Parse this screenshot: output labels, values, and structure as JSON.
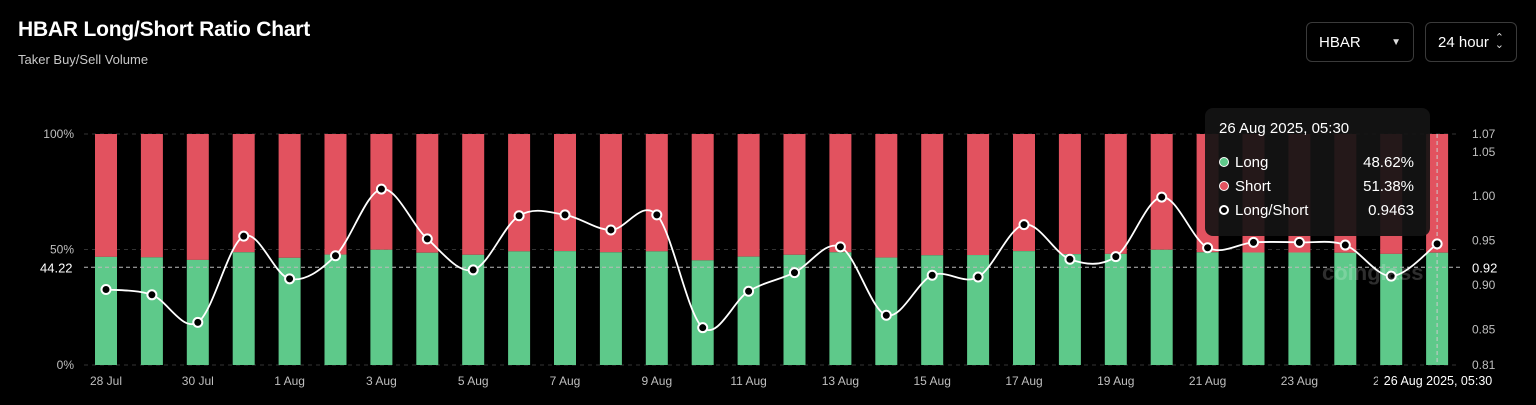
{
  "header": {
    "title": "HBAR Long/Short Ratio Chart",
    "subtitle": "Taker Buy/Sell Volume"
  },
  "controls": {
    "coin": "HBAR",
    "interval": "24 hour"
  },
  "colors": {
    "long": "#5ec98a",
    "short": "#e2525f",
    "line": "#ffffff",
    "background": "#000000"
  },
  "tooltip": {
    "title": "26 Aug 2025, 05:30",
    "rows": [
      {
        "label": "Long",
        "value": "48.62%",
        "color": "#5ec98a"
      },
      {
        "label": "Short",
        "value": "51.38%",
        "color": "#e2525f"
      },
      {
        "label": "Long/Short",
        "value": "0.9463",
        "color": "#ffffff"
      }
    ]
  },
  "watermark": "coinglass",
  "chart_data": {
    "type": "bar",
    "categories": [
      "28 Jul",
      "29 Jul",
      "30 Jul",
      "31 Jul",
      "1 Aug",
      "2 Aug",
      "3 Aug",
      "4 Aug",
      "5 Aug",
      "6 Aug",
      "7 Aug",
      "8 Aug",
      "9 Aug",
      "10 Aug",
      "11 Aug",
      "12 Aug",
      "13 Aug",
      "14 Aug",
      "15 Aug",
      "16 Aug",
      "17 Aug",
      "18 Aug",
      "19 Aug",
      "20 Aug",
      "21 Aug",
      "22 Aug",
      "23 Aug",
      "24 Aug",
      "25 Aug",
      "26 Aug"
    ],
    "x_tick_labels": [
      "28 Jul",
      "30 Jul",
      "1 Aug",
      "3 Aug",
      "5 Aug",
      "7 Aug",
      "9 Aug",
      "11 Aug",
      "13 Aug",
      "15 Aug",
      "17 Aug",
      "19 Aug",
      "21 Aug",
      "23 Aug",
      "2"
    ],
    "series": [
      {
        "name": "Long",
        "axis": "left",
        "values": [
          46.8,
          46.6,
          45.5,
          48.8,
          46.4,
          47.8,
          49.9,
          48.6,
          47.7,
          49.2,
          49.3,
          48.8,
          49.2,
          45.3,
          46.9,
          47.7,
          48.8,
          46.5,
          47.5,
          47.6,
          49.3,
          48.0,
          48.1,
          49.9,
          48.8,
          48.7,
          48.7,
          48.6,
          48.1,
          48.62
        ]
      },
      {
        "name": "Short",
        "axis": "left",
        "values": [
          53.2,
          53.4,
          54.5,
          51.2,
          53.6,
          52.2,
          50.1,
          51.4,
          52.3,
          50.8,
          50.7,
          51.2,
          50.8,
          54.7,
          53.1,
          52.3,
          51.2,
          53.5,
          52.5,
          52.4,
          50.7,
          52.0,
          51.9,
          50.1,
          51.2,
          51.3,
          51.3,
          51.4,
          51.9,
          51.38
        ]
      },
      {
        "name": "Long/Short",
        "axis": "right",
        "type": "line",
        "values": [
          0.895,
          0.889,
          0.858,
          0.955,
          0.907,
          0.933,
          1.008,
          0.952,
          0.917,
          0.978,
          0.979,
          0.962,
          0.979,
          0.852,
          0.893,
          0.914,
          0.943,
          0.866,
          0.911,
          0.909,
          0.968,
          0.929,
          0.932,
          0.999,
          0.942,
          0.948,
          0.948,
          0.945,
          0.91,
          0.9463
        ]
      }
    ],
    "y_left": {
      "ticks": [
        "100%",
        "50%",
        "0%"
      ],
      "range": [
        0,
        100
      ]
    },
    "y_right": {
      "ticks": [
        "1.07",
        "1.05",
        "1.00",
        "0.95",
        "0.90",
        "0.85",
        "0.81"
      ],
      "range": [
        0.81,
        1.07
      ]
    },
    "crosshair": {
      "left_label": "44.22",
      "right_label": "0.92",
      "x_label": "26 Aug 2025, 05:30"
    },
    "grid": "horizontal dashed"
  }
}
